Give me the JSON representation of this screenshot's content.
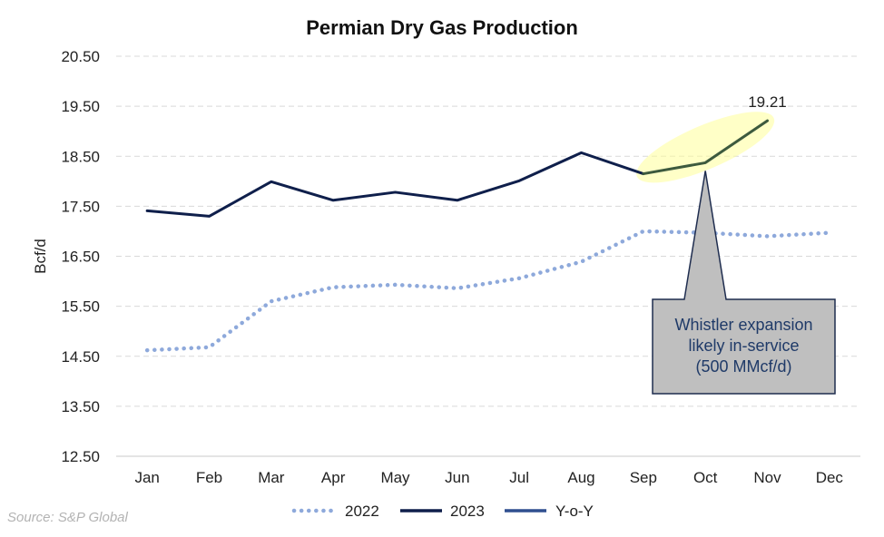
{
  "chart_data": {
    "type": "line",
    "title": "Permian Dry Gas Production",
    "ylabel": "Bcf/d",
    "xlabel": "",
    "ylim": [
      12.5,
      20.5
    ],
    "yticks": [
      "12.50",
      "13.50",
      "14.50",
      "15.50",
      "16.50",
      "17.50",
      "18.50",
      "19.50",
      "20.50"
    ],
    "categories": [
      "Jan",
      "Feb",
      "Mar",
      "Apr",
      "May",
      "Jun",
      "Jul",
      "Aug",
      "Sep",
      "Oct",
      "Nov",
      "Dec"
    ],
    "grid": true,
    "legend_position": "bottom",
    "series": [
      {
        "name": "2022",
        "style": "dotted",
        "color": "#8ea9db",
        "values": [
          14.62,
          14.68,
          15.6,
          15.88,
          15.93,
          15.86,
          16.06,
          16.39,
          17.0,
          16.97,
          16.9,
          16.97
        ]
      },
      {
        "name": "2023",
        "style": "solid",
        "color": "#0f1f4b",
        "values": [
          17.41,
          17.3,
          17.99,
          17.62,
          17.78,
          17.62,
          18.01,
          18.57,
          18.15,
          null,
          null,
          null
        ]
      },
      {
        "name": "Y-o-Y",
        "style": "solid",
        "color": "#3d5a3e",
        "legend_color": "#2f4f8f",
        "values": [
          null,
          null,
          null,
          null,
          null,
          null,
          null,
          null,
          18.15,
          18.37,
          19.21,
          null
        ]
      }
    ],
    "annotations": {
      "point_label": {
        "text": "19.21",
        "category": "Nov",
        "value": 19.21
      },
      "callout": {
        "lines": [
          "Whistler expansion",
          "likely in-service",
          "(500 MMcf/d)"
        ],
        "points_to": {
          "category": "Oct",
          "value": 18.37
        }
      },
      "highlight": {
        "from_category": "Sep",
        "to_category": "Nov"
      }
    }
  },
  "source_text": "Source: S&P Global"
}
